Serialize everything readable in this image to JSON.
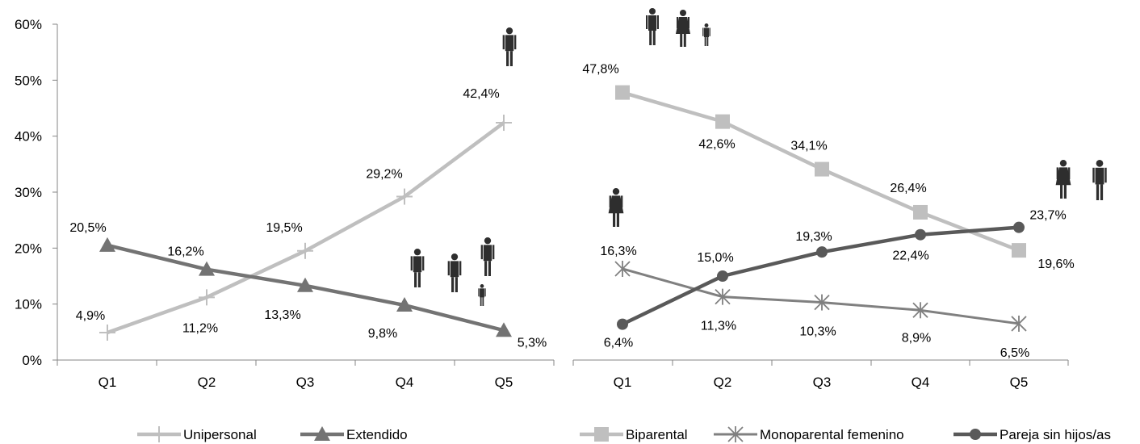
{
  "chart_data": [
    {
      "type": "line",
      "categories": [
        "Q1",
        "Q2",
        "Q3",
        "Q4",
        "Q5"
      ],
      "y_ticks": [
        "0%",
        "10%",
        "20%",
        "30%",
        "40%",
        "50%",
        "60%"
      ],
      "ylim": [
        0,
        60
      ],
      "grid": false,
      "legend_position": "bottom",
      "series": [
        {
          "name": "Unipersonal",
          "color": "#bfbfbf",
          "marker": "plus",
          "values": [
            4.9,
            11.2,
            19.5,
            29.2,
            42.4
          ],
          "labels": [
            "4,9%",
            "11,2%",
            "19,5%",
            "29,2%",
            "42,4%"
          ]
        },
        {
          "name": "Extendido",
          "color": "#737373",
          "marker": "triangle",
          "values": [
            20.5,
            16.2,
            13.3,
            9.8,
            5.3
          ],
          "labels": [
            "20,5%",
            "16,2%",
            "13,3%",
            "9,8%",
            "5,3%"
          ]
        }
      ]
    },
    {
      "type": "line",
      "categories": [
        "Q1",
        "Q2",
        "Q3",
        "Q4",
        "Q5"
      ],
      "ylim": [
        0,
        60
      ],
      "grid": false,
      "legend_position": "bottom",
      "series": [
        {
          "name": "Biparental",
          "color": "#bfbfbf",
          "marker": "square",
          "values": [
            47.8,
            42.6,
            34.1,
            26.4,
            19.6
          ],
          "labels": [
            "47,8%",
            "42,6%",
            "34,1%",
            "26,4%",
            "19,6%"
          ]
        },
        {
          "name": "Monoparental femenino",
          "color": "#808080",
          "marker": "star",
          "values": [
            16.3,
            11.3,
            10.3,
            8.9,
            6.5
          ],
          "labels": [
            "16,3%",
            "11,3%",
            "10,3%",
            "8,9%",
            "6,5%"
          ]
        },
        {
          "name": "Pareja sin hijos/as",
          "color": "#595959",
          "marker": "circle",
          "values": [
            6.4,
            15.0,
            19.3,
            22.4,
            23.7
          ],
          "labels": [
            "6,4%",
            "15,0%",
            "19,3%",
            "22,4%",
            "23,7%"
          ]
        }
      ]
    }
  ]
}
